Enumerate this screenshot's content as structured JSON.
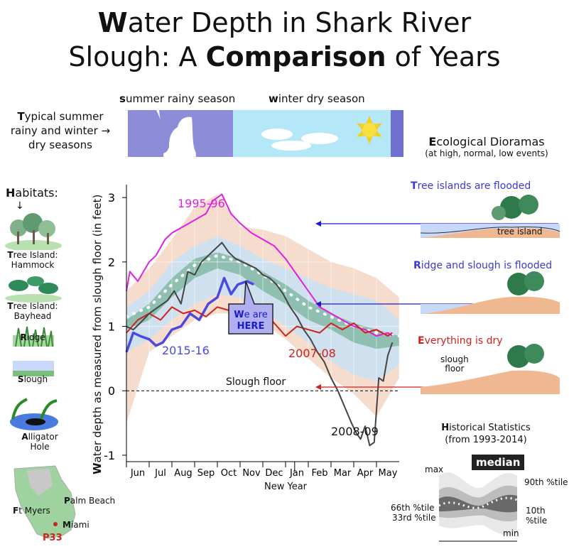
{
  "title": {
    "line1_bold": "W",
    "line1_rest": "ater Depth in Shark River",
    "line2_a": "Slough: A ",
    "line2_bold": "Comparison",
    "line2_b": " of Years"
  },
  "seasons": {
    "summer_label_bold": "s",
    "summer_label_rest": "ummer rainy season",
    "winter_label_bold": "w",
    "winter_label_rest": "inter dry season",
    "typical_bold": "T",
    "typical_rest": "ypical summer",
    "typical_line2": "rainy and winter",
    "typical_line3": "dry seasons",
    "arrow": "→"
  },
  "dioramas": {
    "heading_bold": "E",
    "heading_rest": "cological Dioramas",
    "sub": "(at high, normal, low events)",
    "high_bold": "T",
    "high_rest": "ree islands are flooded",
    "normal_bold": "R",
    "normal_rest": "idge and slough is flooded",
    "low_bold": "E",
    "low_rest": "verything is dry",
    "tree_island_label": "tree island",
    "slough_floor_label_1": "slough",
    "slough_floor_label_2": "floor"
  },
  "habitats": {
    "heading_bold": "H",
    "heading_rest": "abitats:",
    "items": [
      {
        "bold": "T",
        "rest": "ree Island:",
        "line2": "Hammock"
      },
      {
        "bold": "T",
        "rest": "ree Island:",
        "line2": "Bayhead"
      },
      {
        "bold": "R",
        "rest": "idge",
        "line2": ""
      },
      {
        "bold": "S",
        "rest": "lough",
        "line2": ""
      },
      {
        "bold": "A",
        "rest": "lligator",
        "line2": "Hole"
      }
    ]
  },
  "map": {
    "ft_myers_bold": "F",
    "ft_myers_rest": "t Myers",
    "palm_beach_bold": "P",
    "palm_beach_rest": "alm Beach",
    "miami_bold": "M",
    "miami_rest": "iami",
    "station": "P33"
  },
  "stats": {
    "heading_bold": "H",
    "heading_rest": "istorical Statistics",
    "sub": "(from 1993-2014)",
    "max": "max",
    "median": "median",
    "p90": "90th %tile",
    "p66": "66th %tile",
    "p33": "33rd %tile",
    "p10": "10th %tile",
    "min": "min"
  },
  "we_are_here": {
    "bold": "W",
    "rest": "e are",
    "line2": "HERE"
  },
  "chart_data": {
    "type": "line",
    "title": "",
    "xlabel": "New Year",
    "ylabel_bold": "W",
    "ylabel_rest": "ater depth as measured from slough floor (in feet)",
    "ylim": [
      -1.1,
      3.2
    ],
    "yticks": [
      -1,
      0,
      1,
      2,
      3
    ],
    "months": [
      "Jun",
      "Jul",
      "Aug",
      "Sep",
      "Oct",
      "Nov",
      "Dec",
      "Jan",
      "Feb",
      "Mar",
      "Apr",
      "May"
    ],
    "reference_line": {
      "y": 0,
      "label": "Slough floor"
    },
    "stat_bands": {
      "x": [
        0,
        1,
        2,
        3,
        4,
        5,
        6,
        7,
        8,
        9,
        10,
        11,
        12
      ],
      "max": [
        1.55,
        1.9,
        2.35,
        2.85,
        3.05,
        2.55,
        2.5,
        2.4,
        2.2,
        2.0,
        1.9,
        1.75,
        1.45
      ],
      "p90": [
        1.3,
        1.55,
        2.0,
        2.25,
        2.4,
        2.25,
        2.05,
        1.9,
        1.75,
        1.6,
        1.5,
        1.4,
        1.1
      ],
      "p66": [
        1.1,
        1.35,
        1.75,
        2.05,
        2.15,
        2.05,
        1.85,
        1.65,
        1.4,
        1.2,
        1.05,
        0.95,
        0.85
      ],
      "median": [
        1.15,
        1.3,
        1.65,
        1.95,
        2.1,
        2.0,
        1.8,
        1.55,
        1.3,
        1.15,
        1.0,
        0.9,
        0.85
      ],
      "p33": [
        0.95,
        1.1,
        1.45,
        1.75,
        1.9,
        1.8,
        1.55,
        1.35,
        1.1,
        0.95,
        0.75,
        0.65,
        0.7
      ],
      "p10": [
        0.6,
        0.8,
        1.1,
        1.35,
        1.5,
        1.45,
        1.25,
        1.0,
        0.75,
        0.45,
        0.25,
        0.15,
        0.4
      ],
      "min": [
        -0.5,
        0.6,
        0.85,
        1.1,
        1.2,
        1.2,
        1.05,
        0.8,
        0.5,
        0.2,
        -0.05,
        -0.4,
        0.2
      ]
    },
    "series": [
      {
        "name": "1995-96",
        "color": "#e020e0",
        "x": [
          0,
          0.15,
          0.5,
          1.0,
          1.3,
          1.7,
          2.0,
          2.5,
          3.0,
          3.5,
          3.8,
          4.2,
          4.6,
          5.0,
          5.5,
          6.0,
          6.5,
          7.0,
          7.5,
          8.0,
          8.5,
          9.0,
          9.5,
          10.0,
          10.5,
          11.0,
          11.5,
          11.7
        ],
        "y": [
          1.55,
          1.85,
          1.7,
          2.0,
          2.1,
          2.35,
          2.45,
          2.55,
          2.65,
          2.75,
          2.95,
          3.05,
          2.75,
          2.6,
          2.45,
          2.35,
          2.25,
          2.05,
          1.8,
          1.55,
          1.3,
          1.2,
          1.1,
          1.0,
          0.95,
          0.85,
          0.9,
          0.85
        ]
      },
      {
        "name": "2015-16",
        "color": "#4a4ae0",
        "x": [
          0,
          0.3,
          0.6,
          1.0,
          1.3,
          1.6,
          2.0,
          2.4,
          2.8,
          3.2,
          3.6,
          4.0,
          4.3,
          4.6,
          4.9,
          5.3,
          5.6
        ],
        "y": [
          0.6,
          0.9,
          0.85,
          0.8,
          0.7,
          0.75,
          0.95,
          1.0,
          1.2,
          1.1,
          1.35,
          1.45,
          1.75,
          1.5,
          1.65,
          1.7,
          1.65
        ]
      },
      {
        "name": "2007-08",
        "color": "#d02020",
        "x": [
          0,
          0.5,
          1.0,
          1.5,
          2.0,
          2.5,
          3.0,
          3.5,
          4.0,
          4.5,
          5.0,
          5.5,
          6.0,
          6.5,
          7.0,
          7.5,
          8.0,
          8.5,
          9.0,
          9.5,
          10.0,
          10.5,
          11.0,
          11.5,
          11.7
        ],
        "y": [
          0.9,
          1.1,
          1.2,
          1.1,
          1.3,
          1.2,
          1.25,
          1.15,
          1.3,
          1.25,
          1.3,
          1.2,
          1.25,
          1.05,
          0.85,
          1.0,
          0.95,
          0.9,
          1.05,
          0.95,
          1.05,
          0.9,
          0.95,
          0.85,
          0.9
        ]
      },
      {
        "name": "2008-09",
        "color": "#444444",
        "x": [
          0,
          0.3,
          0.6,
          1.0,
          1.4,
          1.8,
          2.1,
          2.4,
          2.7,
          3.0,
          3.3,
          3.6,
          3.9,
          4.2,
          4.5,
          4.8,
          5.1,
          5.4,
          5.7,
          6.0,
          6.3,
          6.6,
          6.9,
          7.2,
          7.5,
          7.8,
          8.1,
          8.4,
          8.7,
          9.0,
          9.3,
          9.6,
          9.9,
          10.1,
          10.3,
          10.5,
          10.7,
          10.9,
          11.1,
          11.3,
          11.5,
          11.7
        ],
        "y": [
          1.0,
          0.95,
          1.05,
          1.2,
          1.3,
          1.4,
          1.55,
          1.35,
          1.85,
          1.8,
          2.0,
          2.1,
          2.2,
          2.3,
          2.15,
          2.05,
          2.0,
          1.95,
          1.9,
          1.8,
          1.75,
          1.65,
          1.5,
          1.3,
          1.15,
          0.95,
          0.8,
          0.6,
          0.45,
          0.2,
          0.0,
          -0.25,
          -0.5,
          -0.65,
          -0.75,
          -0.55,
          -0.85,
          -0.8,
          0.2,
          0.15,
          0.55,
          0.75
        ]
      }
    ]
  }
}
